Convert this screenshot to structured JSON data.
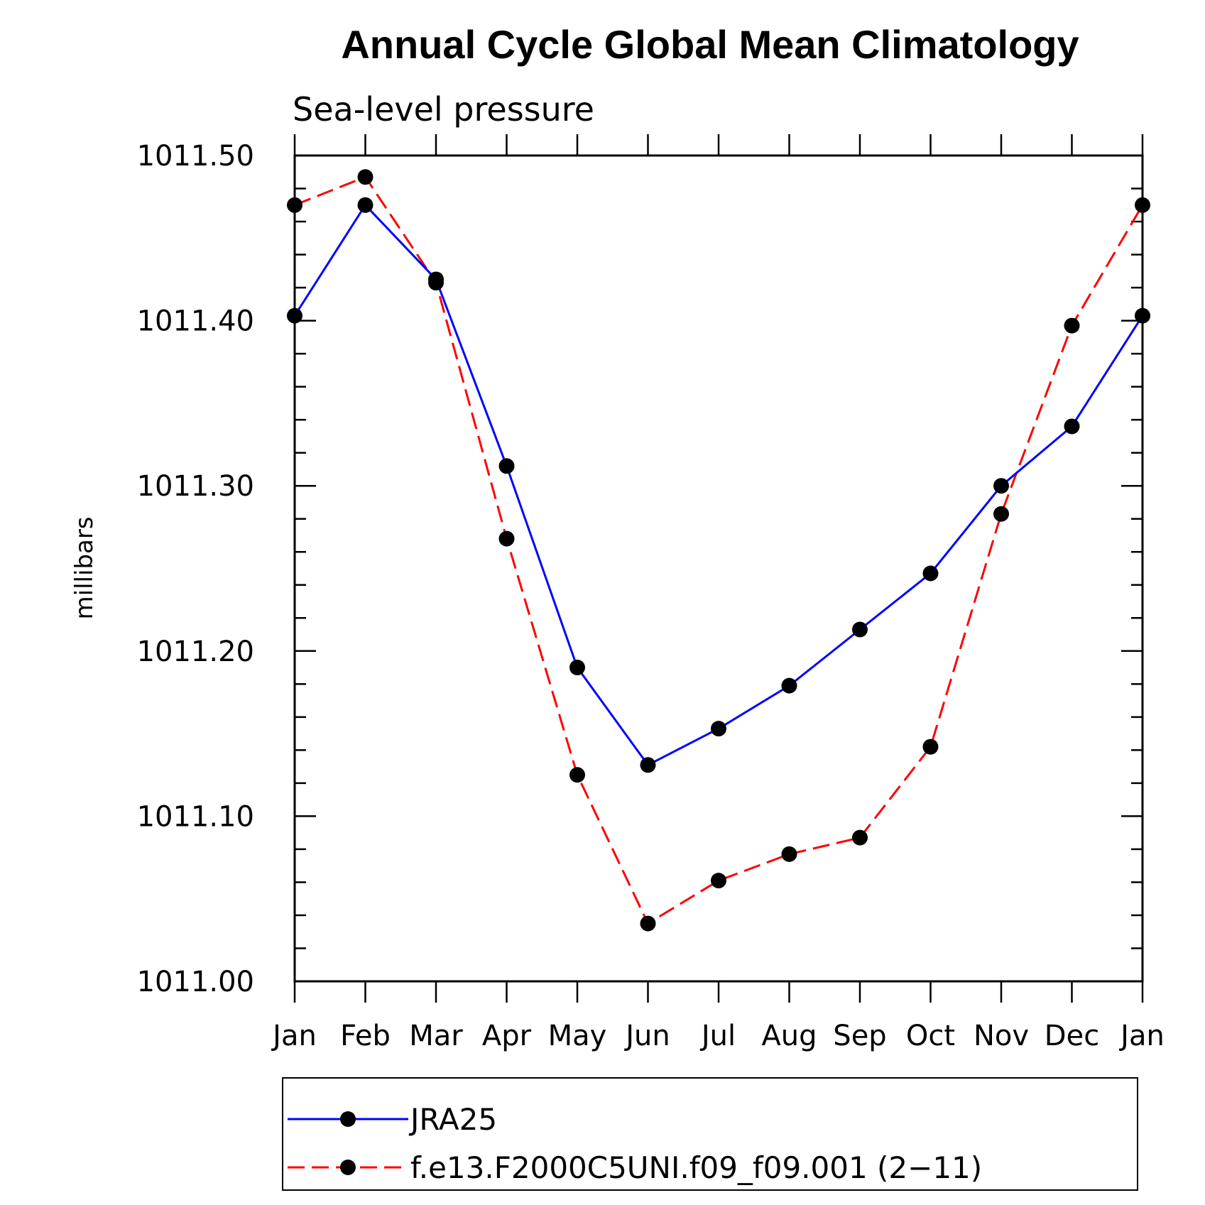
{
  "chart_data": {
    "type": "line",
    "title": "Annual Cycle Global Mean Climatology",
    "subtitle": "Sea-level pressure",
    "xlabel": "",
    "ylabel": "millibars",
    "categories": [
      "Jan",
      "Feb",
      "Mar",
      "Apr",
      "May",
      "Jun",
      "Jul",
      "Aug",
      "Sep",
      "Oct",
      "Nov",
      "Dec",
      "Jan"
    ],
    "ylim": [
      1011.0,
      1011.5
    ],
    "yticks": [
      "1011.00",
      "1011.10",
      "1011.20",
      "1011.30",
      "1011.40",
      "1011.50"
    ],
    "legend_position": "bottom",
    "grid": false,
    "series": [
      {
        "name": "JRA25",
        "color": "#0000ff",
        "style": "solid",
        "values": [
          1011.403,
          1011.47,
          1011.425,
          1011.312,
          1011.19,
          1011.131,
          1011.153,
          1011.179,
          1011.213,
          1011.247,
          1011.3,
          1011.336,
          1011.403
        ]
      },
      {
        "name": "f.e13.F2000C5UNI.f09_f09.001 (2−11)",
        "color": "#ff0000",
        "style": "dashed",
        "values": [
          1011.47,
          1011.487,
          1011.423,
          1011.268,
          1011.125,
          1011.035,
          1011.061,
          1011.077,
          1011.087,
          1011.142,
          1011.283,
          1011.397,
          1011.47
        ]
      }
    ]
  }
}
